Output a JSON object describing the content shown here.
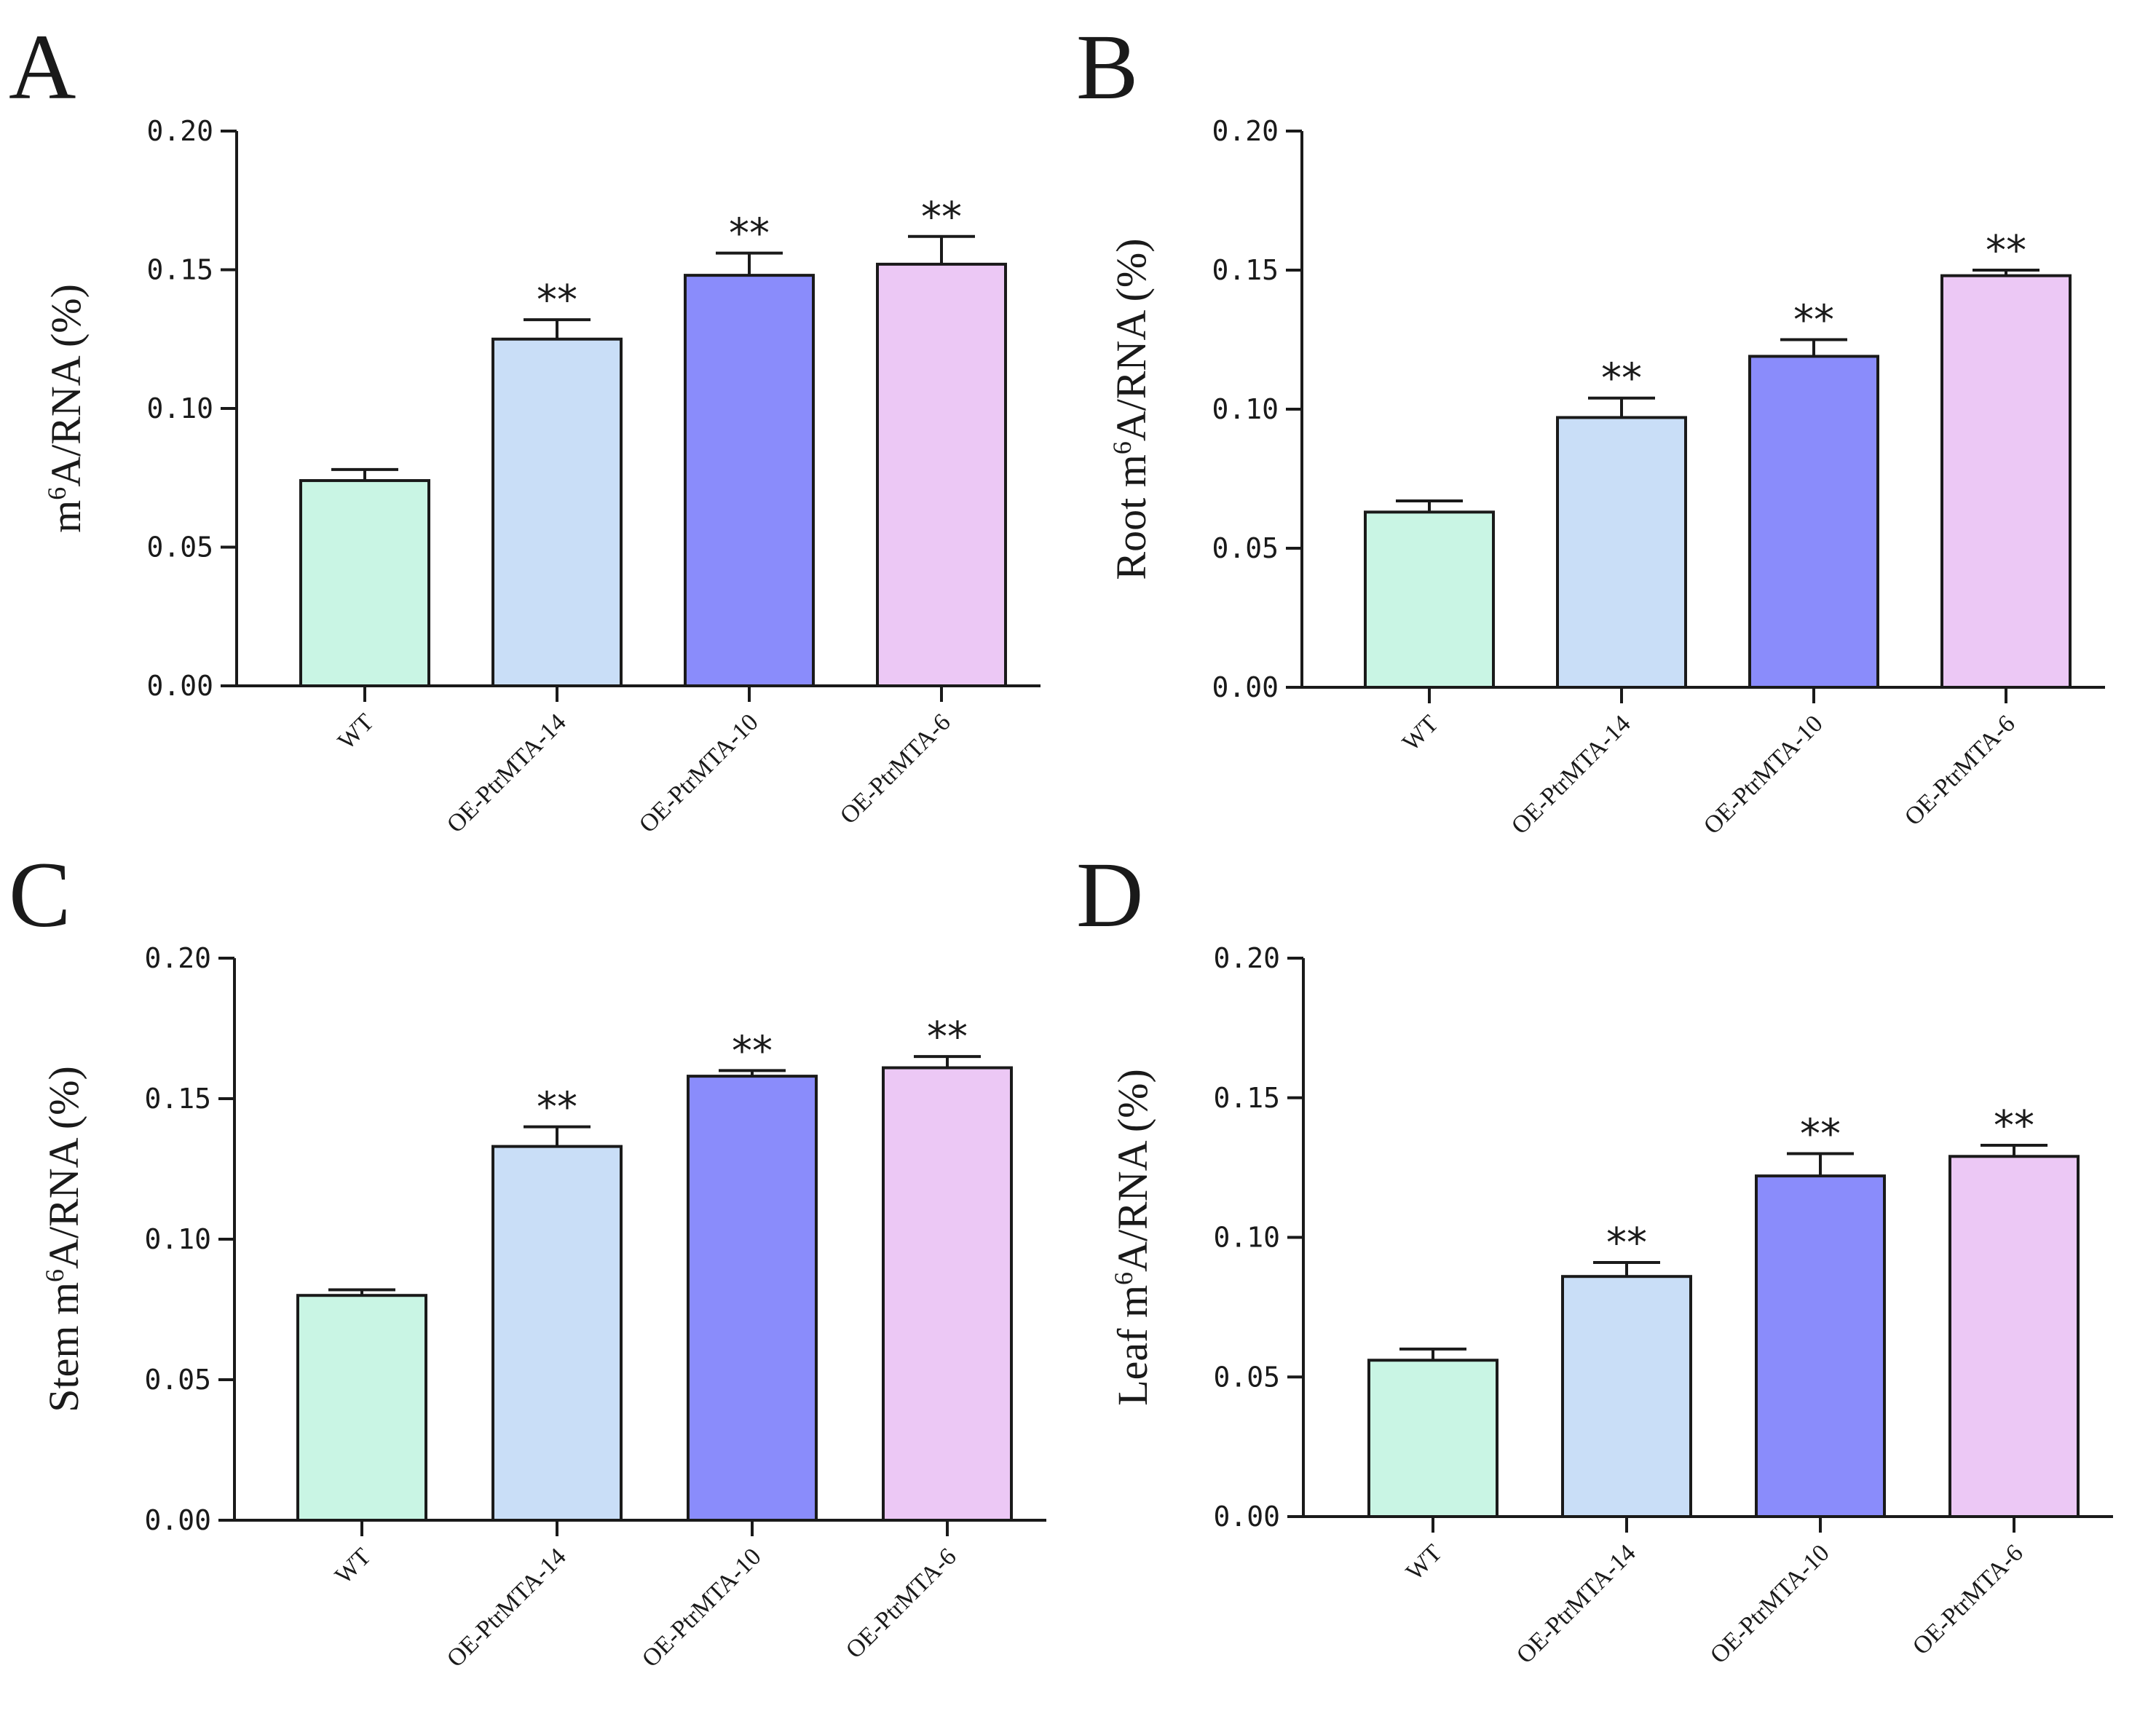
{
  "chart_data": [
    {
      "panel": "A",
      "type": "bar",
      "ylabel_parts": [
        "m",
        "6",
        "A/RNA (%)"
      ],
      "categories": [
        "WT",
        "OE-PtrMTA-14",
        "OE-PtrMTA-10",
        "OE-PtrMTA-6"
      ],
      "values": [
        0.074,
        0.125,
        0.148,
        0.152
      ],
      "errors": [
        0.004,
        0.007,
        0.008,
        0.01
      ],
      "significance": [
        "",
        "**",
        "**",
        "**"
      ],
      "ylim": [
        0,
        0.2
      ],
      "yticks": [
        "0.00",
        "0.05",
        "0.10",
        "0.15",
        "0.20"
      ]
    },
    {
      "panel": "B",
      "type": "bar",
      "ylabel_parts": [
        "Root m",
        "6",
        "A/RNA (%)"
      ],
      "categories": [
        "WT",
        "OE-PtrMTA-14",
        "OE-PtrMTA-10",
        "OE-PtrMTA-6"
      ],
      "values": [
        0.063,
        0.097,
        0.119,
        0.148
      ],
      "errors": [
        0.004,
        0.007,
        0.006,
        0.002
      ],
      "significance": [
        "",
        "**",
        "**",
        "**"
      ],
      "ylim": [
        0,
        0.2
      ],
      "yticks": [
        "0.00",
        "0.05",
        "0.10",
        "0.15",
        "0.20"
      ]
    },
    {
      "panel": "C",
      "type": "bar",
      "ylabel_parts": [
        "Stem m",
        "6",
        "A/RNA (%)"
      ],
      "categories": [
        "WT",
        "OE-PtrMTA-14",
        "OE-PtrMTA-10",
        "OE-PtrMTA-6"
      ],
      "values": [
        0.08,
        0.133,
        0.158,
        0.161
      ],
      "errors": [
        0.002,
        0.007,
        0.002,
        0.004
      ],
      "significance": [
        "",
        "**",
        "**",
        "**"
      ],
      "ylim": [
        0,
        0.2
      ],
      "yticks": [
        "0.00",
        "0.05",
        "0.10",
        "0.15",
        "0.20"
      ]
    },
    {
      "panel": "D",
      "type": "bar",
      "ylabel_parts": [
        "Leaf m",
        "6",
        "A/RNA (%)"
      ],
      "categories": [
        "WT",
        "OE-PtrMTA-14",
        "OE-PtrMTA-10",
        "OE-PtrMTA-6"
      ],
      "values": [
        0.056,
        0.086,
        0.122,
        0.129
      ],
      "errors": [
        0.004,
        0.005,
        0.008,
        0.004
      ],
      "significance": [
        "",
        "**",
        "**",
        "**"
      ],
      "ylim": [
        0,
        0.2
      ],
      "yticks": [
        "0.00",
        "0.05",
        "0.10",
        "0.15",
        "0.20"
      ]
    }
  ],
  "colors": {
    "bars": [
      "#c9f5e4",
      "#c9def7",
      "#8a8cfb",
      "#ecc8f5"
    ],
    "stroke": "#1a1a1a"
  }
}
